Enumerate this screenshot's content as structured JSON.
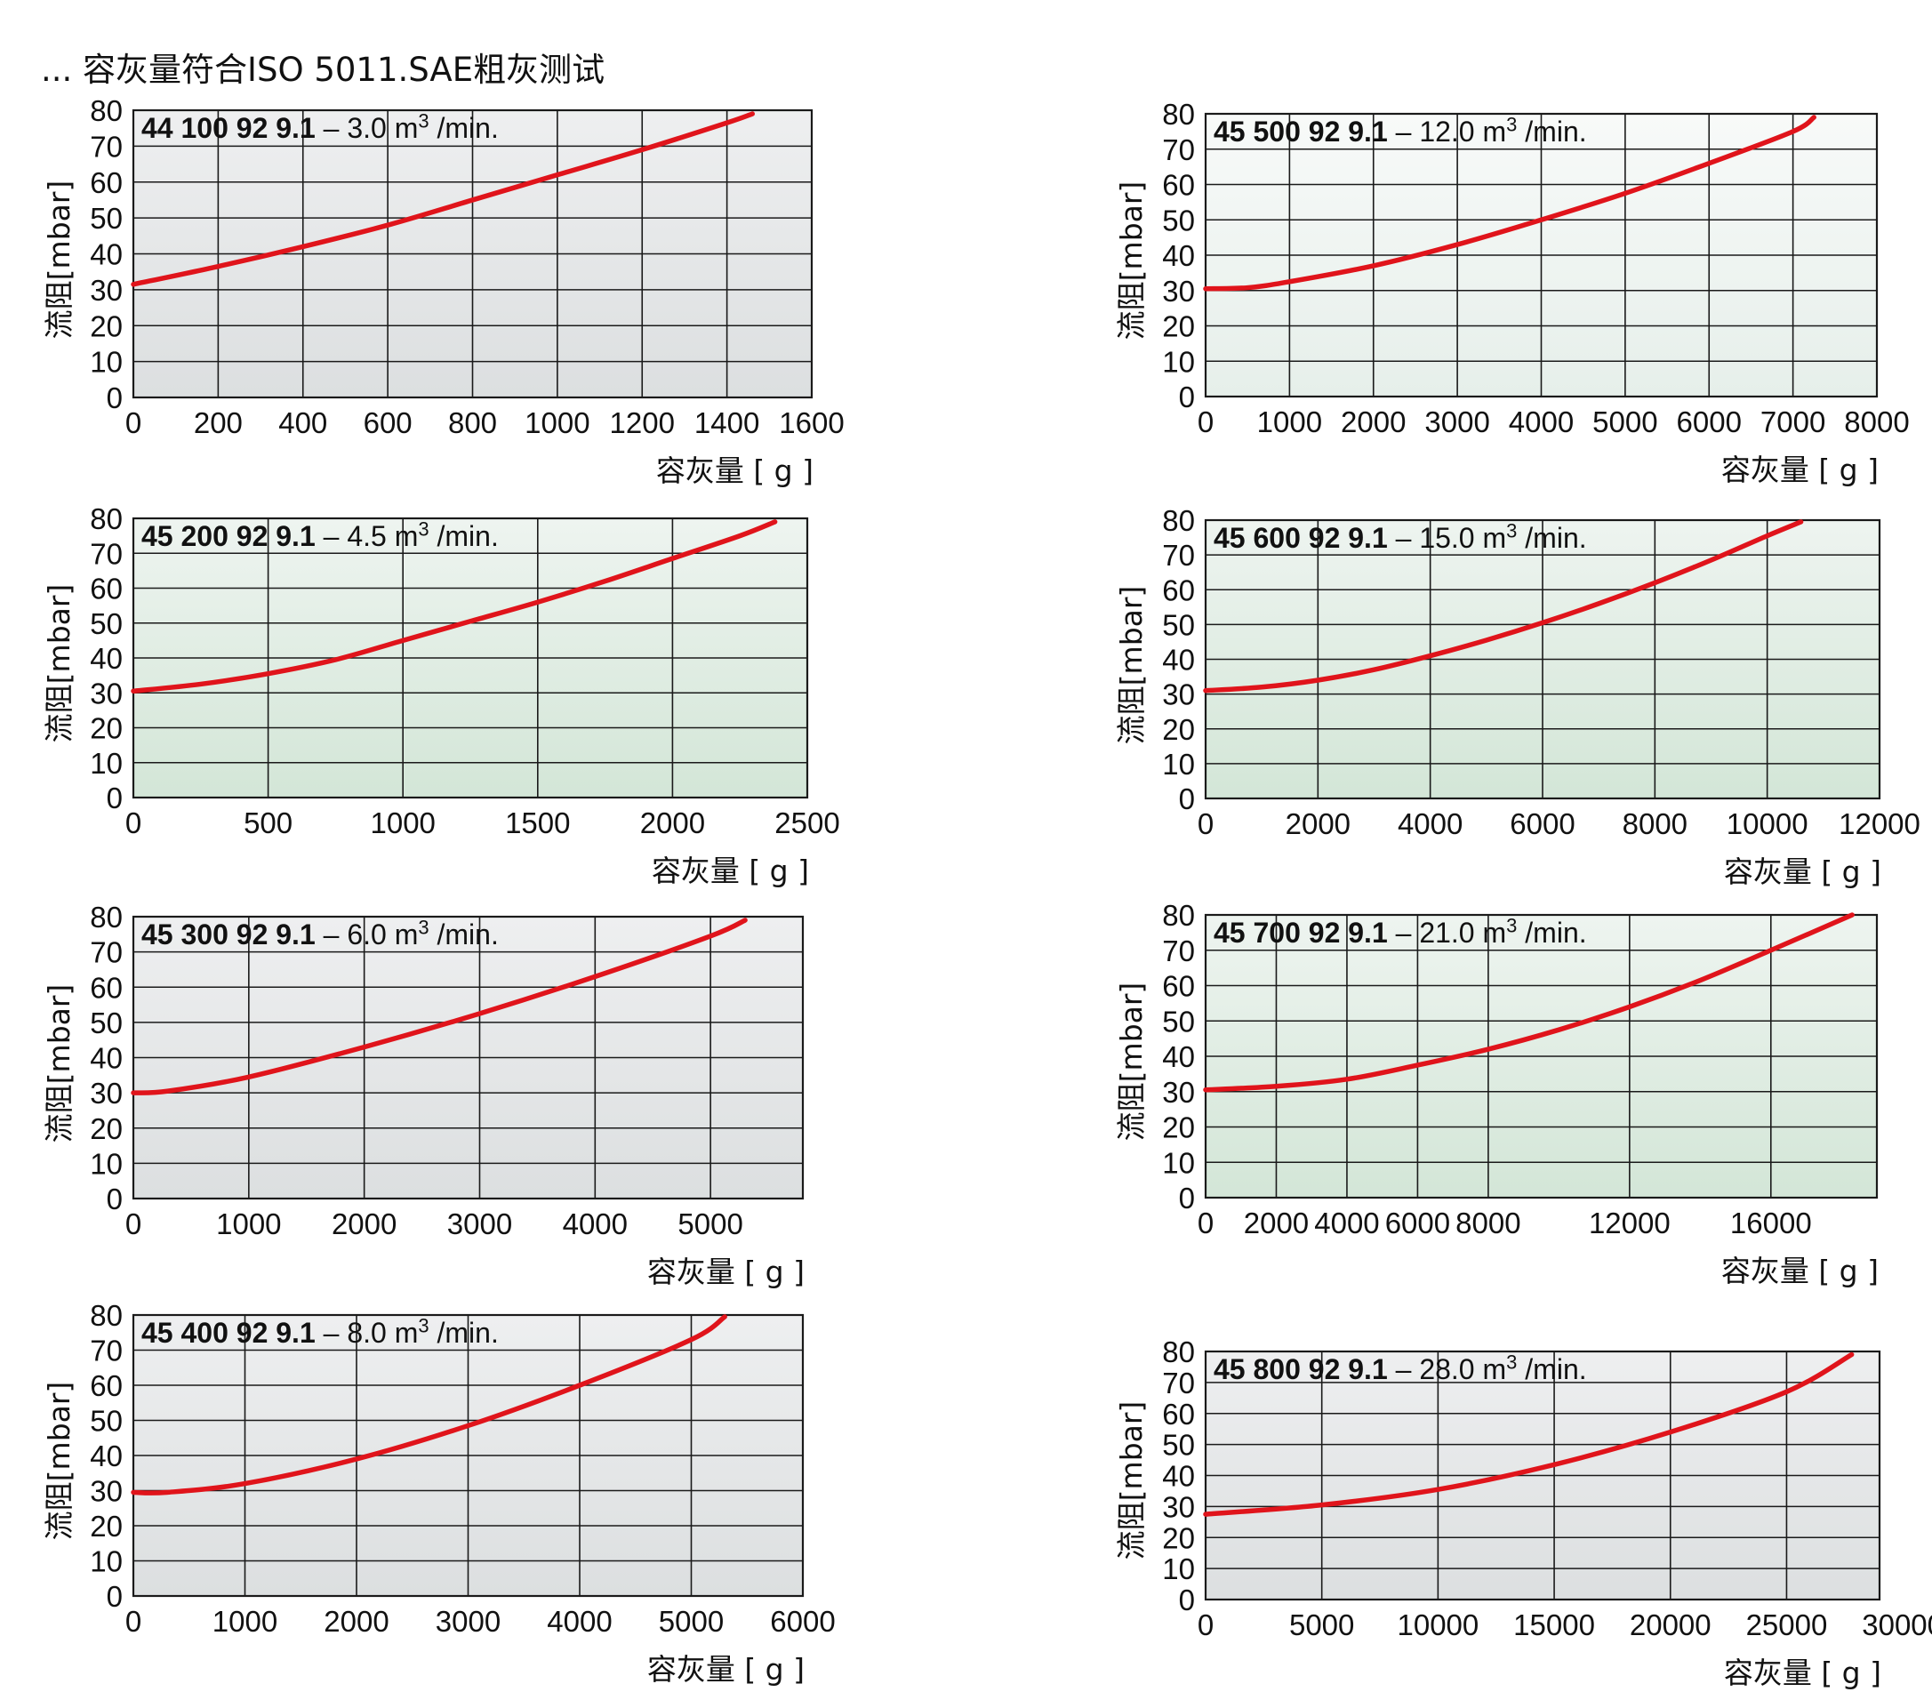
{
  "page_title": "... 容灰量符合ISO 5011.SAE粗灰测试",
  "colors": {
    "curve": "#e0141b",
    "grid": "#1a1a1a",
    "bg_gray": "#e6e8e8",
    "bg_green": "#dce9df",
    "bg_light": "#f1f5f3"
  },
  "chart_data": [
    {
      "type": "line",
      "title_model": "44 100 92 9.1",
      "title_rest": "– 3.0 m",
      "title_sup": "3",
      "title_unit": " /min.",
      "ylabel": "流阻[mbar]",
      "xlabel": "容灰量 [ g ]",
      "xlim": [
        0,
        1600
      ],
      "ylim": [
        0,
        80
      ],
      "xticks": [
        0,
        200,
        400,
        600,
        800,
        1000,
        1200,
        1400,
        1600
      ],
      "xtick_labels": [
        "0",
        "200",
        "400",
        "600",
        "800",
        "1000",
        "1200",
        "1400",
        "1600"
      ],
      "yticks": [
        0,
        10,
        20,
        30,
        40,
        50,
        60,
        70,
        80
      ],
      "ytick_labels": [
        "0",
        "10",
        "20",
        "30",
        "40",
        "50",
        "60",
        "70",
        "80"
      ],
      "x": [
        0,
        200,
        400,
        600,
        800,
        1000,
        1200,
        1400,
        1460
      ],
      "y": [
        31.5,
        36.5,
        42,
        48,
        55,
        62,
        69,
        76.5,
        79
      ],
      "background": "gray"
    },
    {
      "type": "line",
      "title_model": "45 500 92 9.1",
      "title_rest": "– 12.0 m",
      "title_sup": "3",
      "title_unit": " /min.",
      "ylabel": "流阻[mbar]",
      "xlabel": "容灰量 [ g ]",
      "xlim": [
        0,
        8000
      ],
      "ylim": [
        0,
        80
      ],
      "xticks": [
        0,
        1000,
        2000,
        3000,
        4000,
        5000,
        6000,
        7000,
        8000
      ],
      "xtick_labels": [
        "0",
        "1000",
        "2000",
        "3000",
        "4000",
        "5000",
        "6000",
        "7000",
        "8000"
      ],
      "yticks": [
        0,
        10,
        20,
        30,
        40,
        50,
        60,
        70,
        80
      ],
      "ytick_labels": [
        "0",
        "10",
        "20",
        "30",
        "40",
        "50",
        "60",
        "70",
        "80"
      ],
      "x": [
        0,
        500,
        1000,
        2000,
        3000,
        4000,
        5000,
        6000,
        7000,
        7250
      ],
      "y": [
        30.5,
        30.8,
        32.5,
        37,
        43,
        50,
        57.5,
        66,
        75,
        79
      ],
      "background": "light"
    },
    {
      "type": "line",
      "title_model": "45 200 92 9.1",
      "title_rest": "– 4.5 m",
      "title_sup": "3",
      "title_unit": " /min.",
      "ylabel": "流阻[mbar]",
      "xlabel": "容灰量 [ g ]",
      "xlim": [
        0,
        2500
      ],
      "ylim": [
        0,
        80
      ],
      "xticks": [
        0,
        500,
        1000,
        1500,
        2000,
        2500
      ],
      "xtick_labels": [
        "0",
        "500",
        "1000",
        "1500",
        "2000",
        "2500"
      ],
      "yticks": [
        0,
        10,
        20,
        30,
        40,
        50,
        60,
        70,
        80
      ],
      "ytick_labels": [
        "0",
        "10",
        "20",
        "30",
        "40",
        "50",
        "60",
        "70",
        "80"
      ],
      "x": [
        0,
        250,
        500,
        750,
        1000,
        1250,
        1500,
        1750,
        2000,
        2250,
        2380
      ],
      "y": [
        30.5,
        32.5,
        35.5,
        39.5,
        45,
        50.5,
        56,
        62,
        68.5,
        75,
        79
      ],
      "background": "green"
    },
    {
      "type": "line",
      "title_model": "45 600 92 9.1",
      "title_rest": "– 15.0 m",
      "title_sup": "3",
      "title_unit": " /min.",
      "ylabel": "流阻[mbar]",
      "xlabel": "容灰量 [ g ]",
      "xlim": [
        0,
        12000
      ],
      "ylim": [
        0,
        80
      ],
      "xticks": [
        0,
        2000,
        4000,
        6000,
        8000,
        10000,
        12000
      ],
      "xtick_labels": [
        "0",
        "2000",
        "4000",
        "6000",
        "8000",
        "10000",
        "12000"
      ],
      "yticks": [
        0,
        10,
        20,
        30,
        40,
        50,
        60,
        70,
        80
      ],
      "ytick_labels": [
        "0",
        "10",
        "20",
        "30",
        "40",
        "50",
        "60",
        "70",
        "80"
      ],
      "x": [
        0,
        1000,
        2000,
        3000,
        4000,
        5000,
        6000,
        7000,
        8000,
        9000,
        10000,
        10600
      ],
      "y": [
        31,
        32,
        34,
        37,
        41,
        45.5,
        50.5,
        56,
        62,
        68.5,
        75.5,
        79.5
      ],
      "background": "green"
    },
    {
      "type": "line",
      "title_model": "45 300 92 9.1",
      "title_rest": "– 6.0 m",
      "title_sup": "3",
      "title_unit": " /min.",
      "ylabel": "流阻[mbar]",
      "xlabel": "容灰量 [ g ]",
      "xlim": [
        0,
        5800
      ],
      "ylim": [
        0,
        80
      ],
      "xticks": [
        0,
        1000,
        2000,
        3000,
        4000,
        5000
      ],
      "xtick_labels": [
        "0",
        "1000",
        "2000",
        "3000",
        "4000",
        "5000"
      ],
      "yticks": [
        0,
        10,
        20,
        30,
        40,
        50,
        60,
        70,
        80
      ],
      "ytick_labels": [
        "0",
        "10",
        "20",
        "30",
        "40",
        "50",
        "60",
        "70",
        "80"
      ],
      "x": [
        0,
        300,
        1000,
        2000,
        3000,
        4000,
        5000,
        5300
      ],
      "y": [
        30,
        30.5,
        34.5,
        43,
        52.5,
        63,
        74.5,
        79
      ],
      "background": "gray"
    },
    {
      "type": "line",
      "title_model": "45 700 92 9.1",
      "title_rest": "– 21.0 m",
      "title_sup": "3",
      "title_unit": " /min.",
      "ylabel": "流阻[mbar]",
      "xlabel": "容灰量 [ g ]",
      "xlim": [
        0,
        19000
      ],
      "ylim": [
        0,
        80
      ],
      "xticks": [
        0,
        2000,
        4000,
        6000,
        8000,
        12000,
        16000
      ],
      "xtick_labels": [
        "0",
        "2000",
        "4000",
        "6000",
        "8000",
        "12000",
        "16000"
      ],
      "yticks": [
        0,
        10,
        20,
        30,
        40,
        50,
        60,
        70,
        80
      ],
      "ytick_labels": [
        "0",
        "10",
        "20",
        "30",
        "40",
        "50",
        "60",
        "70",
        "80"
      ],
      "x": [
        0,
        2000,
        4000,
        6000,
        8000,
        10000,
        12000,
        14000,
        16000,
        18300
      ],
      "y": [
        30.5,
        31.5,
        33.5,
        37.5,
        42,
        47.5,
        54,
        61.5,
        70,
        80
      ],
      "background": "green"
    },
    {
      "type": "line",
      "title_model": "45 400 92 9.1",
      "title_rest": "– 8.0 m",
      "title_sup": "3",
      "title_unit": " /min.",
      "ylabel": "流阻[mbar]",
      "xlabel": "容灰量 [ g ]",
      "xlim": [
        0,
        6000
      ],
      "ylim": [
        0,
        80
      ],
      "xticks": [
        0,
        1000,
        2000,
        3000,
        4000,
        5000,
        6000
      ],
      "xtick_labels": [
        "0",
        "1000",
        "2000",
        "3000",
        "4000",
        "5000",
        "6000"
      ],
      "yticks": [
        0,
        10,
        20,
        30,
        40,
        50,
        60,
        70,
        80
      ],
      "ytick_labels": [
        "0",
        "10",
        "20",
        "30",
        "40",
        "50",
        "60",
        "70",
        "80"
      ],
      "x": [
        0,
        300,
        1000,
        2000,
        3000,
        4000,
        5000,
        5300
      ],
      "y": [
        29.5,
        29.5,
        32,
        39,
        48.5,
        60,
        73,
        79.5
      ],
      "background": "gray"
    },
    {
      "type": "line",
      "title_model": "45 800 92 9.1",
      "title_rest": "– 28.0 m",
      "title_sup": "3",
      "title_unit": " /min.",
      "ylabel": "流阻[mbar]",
      "xlabel": "容灰量 [ g ]",
      "xlim": [
        0,
        29000
      ],
      "ylim": [
        0,
        80
      ],
      "xticks": [
        0,
        5000,
        10000,
        15000,
        20000,
        25000,
        30000
      ],
      "xtick_labels": [
        "0",
        "5000",
        "10000",
        "15000",
        "20000",
        "25000",
        "30000"
      ],
      "yticks": [
        0,
        10,
        20,
        30,
        40,
        50,
        60,
        70,
        80
      ],
      "ytick_labels": [
        "0",
        "10",
        "20",
        "30",
        "40",
        "50",
        "60",
        "70",
        "80"
      ],
      "x": [
        0,
        5000,
        10000,
        15000,
        20000,
        25000,
        27800
      ],
      "y": [
        27.5,
        30.5,
        35.5,
        43.5,
        54,
        67,
        79
      ],
      "background": "gray"
    }
  ]
}
